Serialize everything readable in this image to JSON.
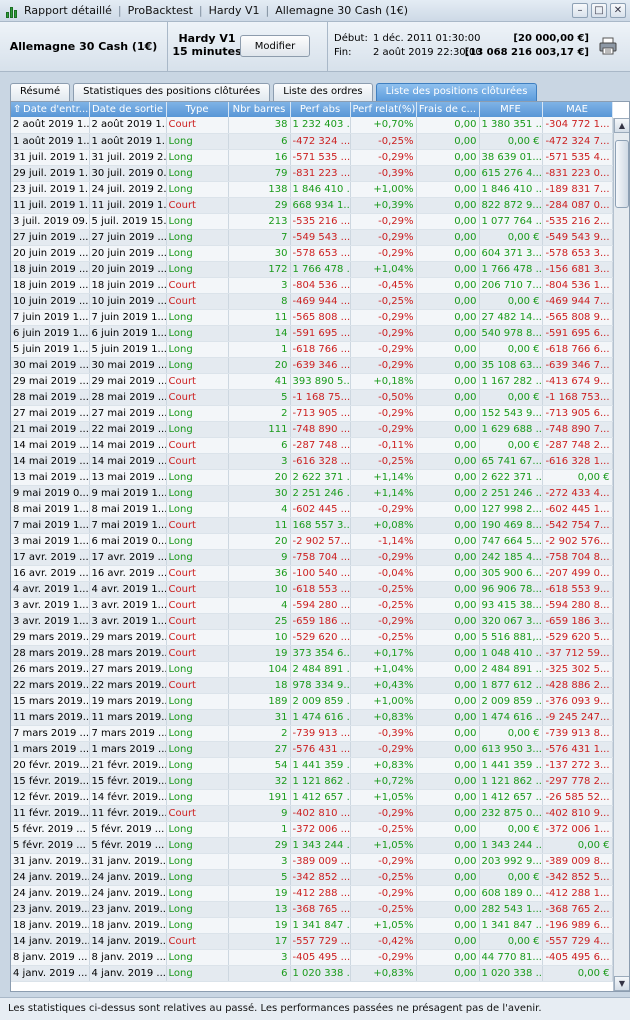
{
  "window": {
    "title_parts": [
      "Rapport détaillé",
      "ProBacktest",
      "Hardy V1",
      "Allemagne 30 Cash (1€)"
    ],
    "min_label": "–",
    "max_label": "□",
    "close_label": "✕"
  },
  "header": {
    "instrument": "Allemagne 30 Cash (1€)",
    "strategy_name": "Hardy V1",
    "timeframe": "15 minutes",
    "modify_label": "Modifier",
    "start_label": "Début:",
    "start_date": "1 déc. 2011 01:30:00",
    "start_capital": "[20 000,00 €]",
    "end_label": "Fin:",
    "end_date": "2 août 2019 22:30:00",
    "end_capital": "[13 068 216 003,17 €]",
    "print_icon": "printer-icon"
  },
  "tabs": [
    {
      "label": "Résumé",
      "active": false
    },
    {
      "label": "Statistiques des positions clôturées",
      "active": false
    },
    {
      "label": "Liste des ordres",
      "active": false
    },
    {
      "label": "Liste des positions clôturées",
      "active": true
    }
  ],
  "table": {
    "columns": [
      "Date d'entr...",
      "Date de sortie",
      "Type",
      "Nbr barres",
      "Perf abs",
      "Perf relat(%)",
      "Frais de c...",
      "MFE",
      "MAE"
    ],
    "sort_icon": "sort-arrow-up-icon",
    "rows": [
      [
        "2 août 2019 1...",
        "2 août 2019 1...",
        "Court",
        "38",
        "1 232 403 ...",
        "+0,70%",
        "0,00",
        "1 380 351 ...",
        "-304 772 1..."
      ],
      [
        "1 août 2019 1...",
        "1 août 2019 1...",
        "Long",
        "6",
        "-472 324 ...",
        "-0,25%",
        "0,00",
        "0,00 €",
        "-472 324 7..."
      ],
      [
        "31 juil. 2019 1...",
        "31 juil. 2019 2...",
        "Long",
        "16",
        "-571 535 ...",
        "-0,29%",
        "0,00",
        "38 639 01...",
        "-571 535 4..."
      ],
      [
        "29 juil. 2019 1...",
        "30 juil. 2019 0...",
        "Long",
        "79",
        "-831 223 ...",
        "-0,39%",
        "0,00",
        "615 276 4...",
        "-831 223 0..."
      ],
      [
        "23 juil. 2019 1...",
        "24 juil. 2019 2...",
        "Long",
        "138",
        "1 846 410 ...",
        "+1,00%",
        "0,00",
        "1 846 410 ...",
        "-189 831 7..."
      ],
      [
        "11 juil. 2019 1...",
        "11 juil. 2019 1...",
        "Court",
        "29",
        "668 934 1...",
        "+0,39%",
        "0,00",
        "822 872 9...",
        "-284 087 0..."
      ],
      [
        "3 juil. 2019 09...",
        "5 juil. 2019 15...",
        "Long",
        "213",
        "-535 216 ...",
        "-0,29%",
        "0,00",
        "1 077 764 ...",
        "-535 216 2..."
      ],
      [
        "27 juin 2019 ...",
        "27 juin 2019 ...",
        "Long",
        "7",
        "-549 543 ...",
        "-0,29%",
        "0,00",
        "0,00 €",
        "-549 543 9..."
      ],
      [
        "20 juin 2019 ...",
        "20 juin 2019 ...",
        "Long",
        "30",
        "-578 653 ...",
        "-0,29%",
        "0,00",
        "604 371 3...",
        "-578 653 3..."
      ],
      [
        "18 juin 2019 ...",
        "20 juin 2019 ...",
        "Long",
        "172",
        "1 766 478 ...",
        "+1,04%",
        "0,00",
        "1 766 478 ...",
        "-156 681 3..."
      ],
      [
        "18 juin 2019 ...",
        "18 juin 2019 ...",
        "Court",
        "3",
        "-804 536 ...",
        "-0,45%",
        "0,00",
        "206 710 7...",
        "-804 536 1..."
      ],
      [
        "10 juin 2019 ...",
        "10 juin 2019 ...",
        "Court",
        "8",
        "-469 944 ...",
        "-0,25%",
        "0,00",
        "0,00 €",
        "-469 944 7..."
      ],
      [
        "7 juin 2019 1...",
        "7 juin 2019 1...",
        "Long",
        "11",
        "-565 808 ...",
        "-0,29%",
        "0,00",
        "27 482 14...",
        "-565 808 9..."
      ],
      [
        "6 juin 2019 1...",
        "6 juin 2019 1...",
        "Long",
        "14",
        "-591 695 ...",
        "-0,29%",
        "0,00",
        "540 978 8...",
        "-591 695 6..."
      ],
      [
        "5 juin 2019 1...",
        "5 juin 2019 1...",
        "Long",
        "1",
        "-618 766 ...",
        "-0,29%",
        "0,00",
        "0,00 €",
        "-618 766 6..."
      ],
      [
        "30 mai 2019 ...",
        "30 mai 2019 ...",
        "Long",
        "20",
        "-639 346 ...",
        "-0,29%",
        "0,00",
        "35 108 63...",
        "-639 346 7..."
      ],
      [
        "29 mai 2019 ...",
        "29 mai 2019 ...",
        "Court",
        "41",
        "393 890 5...",
        "+0,18%",
        "0,00",
        "1 167 282 ...",
        "-413 674 9..."
      ],
      [
        "28 mai 2019 ...",
        "28 mai 2019 ...",
        "Court",
        "5",
        "-1 168 75...",
        "-0,50%",
        "0,00",
        "0,00 €",
        "-1 168 753..."
      ],
      [
        "27 mai 2019 ...",
        "27 mai 2019 ...",
        "Long",
        "2",
        "-713 905 ...",
        "-0,29%",
        "0,00",
        "152 543 9...",
        "-713 905 6..."
      ],
      [
        "21 mai 2019 ...",
        "22 mai 2019 ...",
        "Long",
        "111",
        "-748 890 ...",
        "-0,29%",
        "0,00",
        "1 629 688 ...",
        "-748 890 7..."
      ],
      [
        "14 mai 2019 ...",
        "14 mai 2019 ...",
        "Court",
        "6",
        "-287 748 ...",
        "-0,11%",
        "0,00",
        "0,00 €",
        "-287 748 2..."
      ],
      [
        "14 mai 2019 ...",
        "14 mai 2019 ...",
        "Court",
        "3",
        "-616 328 ...",
        "-0,25%",
        "0,00",
        "65 741 67...",
        "-616 328 1..."
      ],
      [
        "13 mai 2019 ...",
        "13 mai 2019 ...",
        "Long",
        "20",
        "2 622 371 ...",
        "+1,14%",
        "0,00",
        "2 622 371 ...",
        "0,00 €"
      ],
      [
        "9 mai 2019 0...",
        "9 mai 2019 1...",
        "Long",
        "30",
        "2 251 246 ...",
        "+1,14%",
        "0,00",
        "2 251 246 ...",
        "-272 433 4..."
      ],
      [
        "8 mai 2019 1...",
        "8 mai 2019 1...",
        "Long",
        "4",
        "-602 445 ...",
        "-0,29%",
        "0,00",
        "127 998 2...",
        "-602 445 1..."
      ],
      [
        "7 mai 2019 1...",
        "7 mai 2019 1...",
        "Court",
        "11",
        "168 557 3...",
        "+0,08%",
        "0,00",
        "190 469 8...",
        "-542 754 7..."
      ],
      [
        "3 mai 2019 1...",
        "6 mai 2019 0...",
        "Long",
        "20",
        "-2 902 57...",
        "-1,14%",
        "0,00",
        "747 664 5...",
        "-2 902 576..."
      ],
      [
        "17 avr. 2019 ...",
        "17 avr. 2019 ...",
        "Long",
        "9",
        "-758 704 ...",
        "-0,29%",
        "0,00",
        "242 185 4...",
        "-758 704 8..."
      ],
      [
        "16 avr. 2019 ...",
        "16 avr. 2019 ...",
        "Court",
        "36",
        "-100 540 ...",
        "-0,04%",
        "0,00",
        "305 900 6...",
        "-207 499 0..."
      ],
      [
        "4 avr. 2019 1...",
        "4 avr. 2019 1...",
        "Court",
        "10",
        "-618 553 ...",
        "-0,25%",
        "0,00",
        "96 906 78...",
        "-618 553 9..."
      ],
      [
        "3 avr. 2019 1...",
        "3 avr. 2019 1...",
        "Court",
        "4",
        "-594 280 ...",
        "-0,25%",
        "0,00",
        "93 415 38...",
        "-594 280 8..."
      ],
      [
        "3 avr. 2019 1...",
        "3 avr. 2019 1...",
        "Court",
        "25",
        "-659 186 ...",
        "-0,29%",
        "0,00",
        "320 067 3...",
        "-659 186 3..."
      ],
      [
        "29 mars 2019...",
        "29 mars 2019...",
        "Court",
        "10",
        "-529 620 ...",
        "-0,25%",
        "0,00",
        "5 516 881,...",
        "-529 620 5..."
      ],
      [
        "28 mars 2019...",
        "28 mars 2019...",
        "Court",
        "19",
        "373 354 6...",
        "+0,17%",
        "0,00",
        "1 048 410 ...",
        "-37 712 59..."
      ],
      [
        "26 mars 2019...",
        "27 mars 2019...",
        "Long",
        "104",
        "2 484 891 ...",
        "+1,04%",
        "0,00",
        "2 484 891 ...",
        "-325 302 5..."
      ],
      [
        "22 mars 2019...",
        "22 mars 2019...",
        "Court",
        "18",
        "978 334 9...",
        "+0,43%",
        "0,00",
        "1 877 612 ...",
        "-428 886 2..."
      ],
      [
        "15 mars 2019...",
        "19 mars 2019...",
        "Long",
        "189",
        "2 009 859 ...",
        "+1,00%",
        "0,00",
        "2 009 859 ...",
        "-376 093 9..."
      ],
      [
        "11 mars 2019...",
        "11 mars 2019...",
        "Long",
        "31",
        "1 474 616 ...",
        "+0,83%",
        "0,00",
        "1 474 616 ...",
        "-9 245 247..."
      ],
      [
        "7 mars 2019 ...",
        "7 mars 2019 ...",
        "Long",
        "2",
        "-739 913 ...",
        "-0,39%",
        "0,00",
        "0,00 €",
        "-739 913 8..."
      ],
      [
        "1 mars 2019 ...",
        "1 mars 2019 ...",
        "Long",
        "27",
        "-576 431 ...",
        "-0,29%",
        "0,00",
        "613 950 3...",
        "-576 431 1..."
      ],
      [
        "20 févr. 2019...",
        "21 févr. 2019...",
        "Long",
        "54",
        "1 441 359 ...",
        "+0,83%",
        "0,00",
        "1 441 359 ...",
        "-137 272 3..."
      ],
      [
        "15 févr. 2019...",
        "15 févr. 2019...",
        "Long",
        "32",
        "1 121 862 ...",
        "+0,72%",
        "0,00",
        "1 121 862 ...",
        "-297 778 2..."
      ],
      [
        "12 févr. 2019...",
        "14 févr. 2019...",
        "Long",
        "191",
        "1 412 657 ...",
        "+1,05%",
        "0,00",
        "1 412 657 ...",
        "-26 585 52..."
      ],
      [
        "11 févr. 2019...",
        "11 févr. 2019...",
        "Court",
        "9",
        "-402 810 ...",
        "-0,29%",
        "0,00",
        "232 875 0...",
        "-402 810 9..."
      ],
      [
        "5 févr. 2019 ...",
        "5 févr. 2019 ...",
        "Long",
        "1",
        "-372 006 ...",
        "-0,25%",
        "0,00",
        "0,00 €",
        "-372 006 1..."
      ],
      [
        "5 févr. 2019 ...",
        "5 févr. 2019 ...",
        "Long",
        "29",
        "1 343 244 ...",
        "+1,05%",
        "0,00",
        "1 343 244 ...",
        "0,00 €"
      ],
      [
        "31 janv. 2019...",
        "31 janv. 2019...",
        "Long",
        "3",
        "-389 009 ...",
        "-0,29%",
        "0,00",
        "203 992 9...",
        "-389 009 8..."
      ],
      [
        "24 janv. 2019...",
        "24 janv. 2019...",
        "Long",
        "5",
        "-342 852 ...",
        "-0,25%",
        "0,00",
        "0,00 €",
        "-342 852 5..."
      ],
      [
        "24 janv. 2019...",
        "24 janv. 2019...",
        "Long",
        "19",
        "-412 288 ...",
        "-0,29%",
        "0,00",
        "608 189 0...",
        "-412 288 1..."
      ],
      [
        "23 janv. 2019...",
        "23 janv. 2019...",
        "Long",
        "13",
        "-368 765 ...",
        "-0,25%",
        "0,00",
        "282 543 1...",
        "-368 765 2..."
      ],
      [
        "18 janv. 2019...",
        "18 janv. 2019...",
        "Long",
        "19",
        "1 341 847 ...",
        "+1,05%",
        "0,00",
        "1 341 847 ...",
        "-196 989 6..."
      ],
      [
        "14 janv. 2019...",
        "14 janv. 2019...",
        "Court",
        "17",
        "-557 729 ...",
        "-0,42%",
        "0,00",
        "0,00 €",
        "-557 729 4..."
      ],
      [
        "8 janv. 2019 ...",
        "8 janv. 2019 ...",
        "Long",
        "3",
        "-405 495 ...",
        "-0,29%",
        "0,00",
        "44 770 81...",
        "-405 495 6..."
      ],
      [
        "4 janv. 2019 ...",
        "4 janv. 2019 ...",
        "Long",
        "6",
        "1 020 338 ...",
        "+0,83%",
        "0,00",
        "1 020 338 ...",
        "0,00 €"
      ]
    ]
  },
  "scrollbar": {
    "up_label": "▲",
    "down_label": "▼"
  },
  "footer": {
    "text": "Les statistiques ci-dessus sont relatives au passé. Les performances passées ne présagent pas de l'avenir."
  },
  "colors": {
    "long": "#1a9a1a",
    "court": "#cc1f1f",
    "positive": "#1a9a1a",
    "negative": "#cc1f1f",
    "header_blue": "#5896d6",
    "active_tab": "#5d9cdc"
  }
}
